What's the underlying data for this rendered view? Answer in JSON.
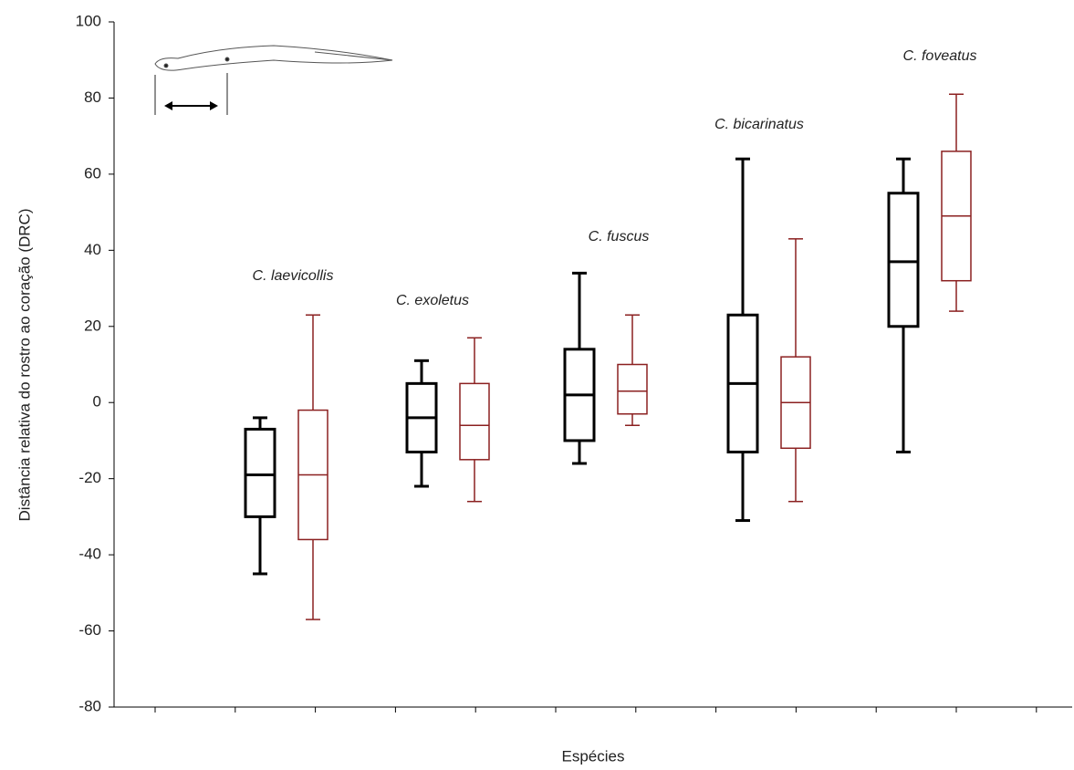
{
  "chart_data": {
    "type": "box",
    "y_label": "Distância relativa do rostro ao coração (DRC)",
    "x_label": "Espécies",
    "categories": [
      "C. laevicollis",
      "C. exoletus",
      "C. fuscus",
      "C. bicarinatus",
      "C. foveatus"
    ],
    "series": [
      {
        "color": "#000000",
        "values": [
          {
            "min": -45,
            "q1": -30,
            "median": -19,
            "q3": -7,
            "max": -4
          },
          {
            "min": -22,
            "q1": -13,
            "median": -4,
            "q3": 5,
            "max": 11
          },
          {
            "min": -16,
            "q1": -10,
            "median": 2,
            "q3": 14,
            "max": 34
          },
          {
            "min": -31,
            "q1": -13,
            "median": 5,
            "q3": 23,
            "max": 64
          },
          {
            "min": -13,
            "q1": 20,
            "median": 37,
            "q3": 55,
            "max": 64
          }
        ]
      },
      {
        "color": "#8b2020",
        "values": [
          {
            "min": -57,
            "q1": -36,
            "median": -19,
            "q3": -2,
            "max": 23
          },
          {
            "min": -26,
            "q1": -15,
            "median": -6,
            "q3": 5,
            "max": 17
          },
          {
            "min": -6,
            "q1": -3,
            "median": 3,
            "q3": 10,
            "max": 23
          },
          {
            "min": -26,
            "q1": -12,
            "median": 0,
            "q3": 12,
            "max": 43
          },
          {
            "min": 24,
            "q1": 32,
            "median": 49,
            "q3": 66,
            "max": 81
          }
        ]
      }
    ],
    "ylim": [
      -80,
      100
    ],
    "yticks": [
      -80,
      -60,
      -40,
      -20,
      0,
      20,
      40,
      60,
      80,
      100
    ]
  }
}
